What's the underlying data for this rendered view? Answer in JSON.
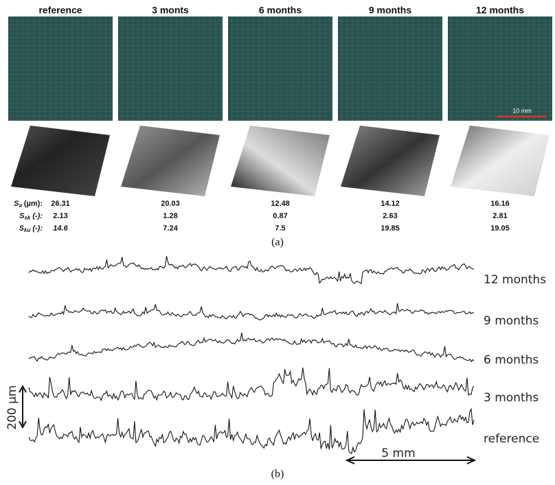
{
  "panel_a": {
    "columns": [
      "reference",
      "3 monts",
      "6 months",
      "9 months",
      "12 months"
    ],
    "scale_bar": "10 mm",
    "parameters": [
      {
        "symbol": "S",
        "sub": "a",
        "unit": "(µm):",
        "values": [
          26.31,
          20.03,
          12.48,
          14.12,
          16.16
        ]
      },
      {
        "symbol": "S",
        "sub": "sk",
        "unit": "(-):",
        "values": [
          2.13,
          1.28,
          0.87,
          2.63,
          2.81
        ]
      },
      {
        "symbol": "S",
        "sub": "ku",
        "unit": "(-):",
        "values": [
          14.6,
          7.24,
          7.5,
          19.85,
          19.05
        ]
      }
    ],
    "caption": "(a)"
  },
  "panel_b": {
    "profiles": [
      "12 months",
      "9 months",
      "6 months",
      "3 months",
      "reference"
    ],
    "vertical_scale": "200 µm",
    "horizontal_scale": "5 mm",
    "caption": "(b)"
  }
}
